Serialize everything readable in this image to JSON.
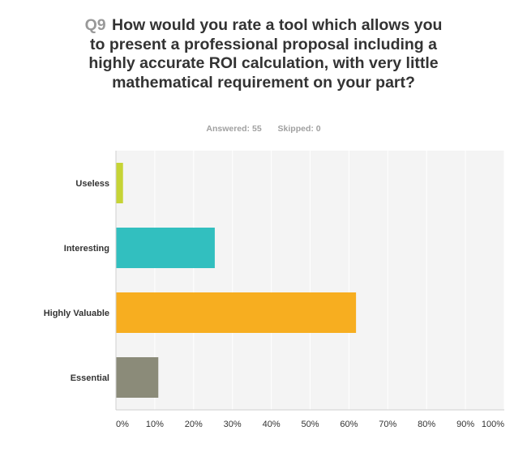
{
  "question": {
    "number": "Q9",
    "text": "How would you rate a tool which allows you to present a professional proposal including a highly accurate ROI calculation, with very little mathematical requirement on your part?"
  },
  "stats": {
    "answered_label": "Answered:",
    "answered": "55",
    "skipped_label": "Skipped:",
    "skipped": "0"
  },
  "colors": {
    "plot_background": "#f4f4f4",
    "gridline": "#ffffff",
    "axis": "#cfcfcf",
    "text_label": "#333333",
    "text_tick": "#333333"
  },
  "chart_data": {
    "type": "bar",
    "orientation": "horizontal",
    "categories": [
      "Useless",
      "Interesting",
      "Highly Valuable",
      "Essential"
    ],
    "values": [
      1.82,
      25.45,
      61.82,
      10.91
    ],
    "colors": [
      "#c6d435",
      "#32bfbf",
      "#f7ae20",
      "#8b8b79"
    ],
    "xlim": [
      0,
      100
    ],
    "xticks": [
      "0%",
      "10%",
      "20%",
      "30%",
      "40%",
      "50%",
      "60%",
      "70%",
      "80%",
      "90%",
      "100%"
    ],
    "grid": true,
    "legend": "none",
    "title": "",
    "xlabel": "",
    "ylabel": ""
  }
}
